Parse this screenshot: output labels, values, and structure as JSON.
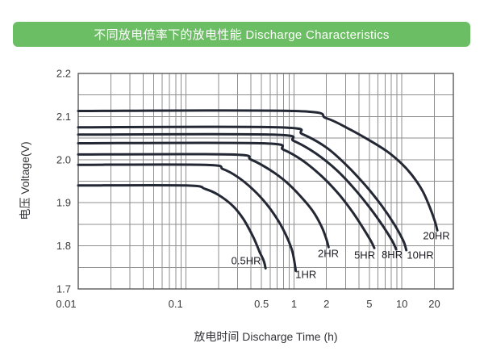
{
  "header": {
    "title": "不同放电倍率下的放电性能 Discharge Characteristics",
    "background_color": "#6cbe64",
    "text_color": "#ffffff"
  },
  "chart_data": {
    "type": "line",
    "title": "不同放电倍率下的放电性能 Discharge Characteristics",
    "xlabel": "放电时间  Discharge Time (h)",
    "ylabel": "电压  Voltage(V)",
    "x_scale": "log",
    "xlim": [
      0.01,
      30
    ],
    "ylim": [
      1.7,
      2.2
    ],
    "grid": true,
    "legend_position": "inline-labels",
    "curve_color": "#232834",
    "grid_color": "#8f8f8f",
    "border_color": "#5a5a5a",
    "tick_color": "#3a3a3e",
    "label_color": "#1d1d24",
    "x_ticks": [
      {
        "label": "0.01",
        "value": 0.01,
        "label_dx": -15
      },
      {
        "label": "0.1",
        "value": 0.1,
        "label_dx": -13
      },
      {
        "label": "0.5",
        "value": 0.5,
        "label_dx": 0
      },
      {
        "label": "1",
        "value": 1,
        "label_dx": 0
      },
      {
        "label": "2",
        "value": 2,
        "label_dx": 0
      },
      {
        "label": "5",
        "value": 5,
        "label_dx": 0
      },
      {
        "label": "10",
        "value": 10,
        "label_dx": 0
      },
      {
        "label": "20",
        "value": 20,
        "label_dx": 0
      }
    ],
    "y_ticks": [
      {
        "label": "2.2",
        "value": 2.2
      },
      {
        "label": "2.1",
        "value": 2.1
      },
      {
        "label": "2.0",
        "value": 2.0
      },
      {
        "label": "1.9",
        "value": 1.9
      },
      {
        "label": "1.8",
        "value": 1.8
      },
      {
        "label": "1.7",
        "value": 1.7
      }
    ],
    "y_minor_step": 0.05,
    "series": [
      {
        "name": "0.5HR",
        "label": "0.5HR",
        "label_anchor": [
          0.36,
          1.766
        ],
        "points": [
          [
            0.01,
            1.94
          ],
          [
            0.1,
            1.94
          ],
          [
            0.15,
            1.932
          ],
          [
            0.2,
            1.918
          ],
          [
            0.27,
            1.893
          ],
          [
            0.34,
            1.862
          ],
          [
            0.42,
            1.82
          ],
          [
            0.48,
            1.786
          ],
          [
            0.525,
            1.765
          ],
          [
            0.545,
            1.748
          ]
        ]
      },
      {
        "name": "1HR",
        "label": "1HR",
        "label_anchor": [
          1.29,
          1.734
        ],
        "points": [
          [
            0.01,
            1.988
          ],
          [
            0.15,
            1.988
          ],
          [
            0.22,
            1.978
          ],
          [
            0.3,
            1.96
          ],
          [
            0.42,
            1.93
          ],
          [
            0.56,
            1.896
          ],
          [
            0.72,
            1.857
          ],
          [
            0.86,
            1.82
          ],
          [
            0.97,
            1.785
          ],
          [
            1.04,
            1.742
          ]
        ]
      },
      {
        "name": "2HR",
        "label": "2HR",
        "label_anchor": [
          2.08,
          1.782
        ],
        "points": [
          [
            0.01,
            2.012
          ],
          [
            0.26,
            2.012
          ],
          [
            0.4,
            2.0
          ],
          [
            0.6,
            1.976
          ],
          [
            0.85,
            1.948
          ],
          [
            1.15,
            1.915
          ],
          [
            1.5,
            1.88
          ],
          [
            1.8,
            1.845
          ],
          [
            2.0,
            1.815
          ],
          [
            2.09,
            1.797
          ]
        ]
      },
      {
        "name": "5HR",
        "label": "5HR",
        "label_anchor": [
          4.52,
          1.779
        ],
        "points": [
          [
            0.01,
            2.038
          ],
          [
            0.5,
            2.038
          ],
          [
            0.8,
            2.023
          ],
          [
            1.2,
            1.998
          ],
          [
            1.8,
            1.962
          ],
          [
            2.6,
            1.92
          ],
          [
            3.5,
            1.878
          ],
          [
            4.4,
            1.84
          ],
          [
            5.2,
            1.81
          ],
          [
            5.55,
            1.795
          ]
        ]
      },
      {
        "name": "8HR",
        "label": "8HR",
        "label_anchor": [
          8.12,
          1.78
        ],
        "points": [
          [
            0.01,
            2.058
          ],
          [
            0.62,
            2.058
          ],
          [
            1.0,
            2.043
          ],
          [
            1.6,
            2.014
          ],
          [
            2.5,
            1.975
          ],
          [
            3.7,
            1.93
          ],
          [
            5.2,
            1.884
          ],
          [
            6.8,
            1.843
          ],
          [
            8.2,
            1.81
          ],
          [
            8.85,
            1.792
          ]
        ]
      },
      {
        "name": "10HR",
        "label": "10HR",
        "label_anchor": [
          14.8,
          1.779
        ],
        "points": [
          [
            0.01,
            2.075
          ],
          [
            0.72,
            2.075
          ],
          [
            1.2,
            2.059
          ],
          [
            2.0,
            2.028
          ],
          [
            3.1,
            1.986
          ],
          [
            4.6,
            1.94
          ],
          [
            6.5,
            1.893
          ],
          [
            8.5,
            1.85
          ],
          [
            10.3,
            1.812
          ],
          [
            11.0,
            1.79
          ]
        ]
      },
      {
        "name": "20HR",
        "label": "20HR",
        "label_anchor": [
          20.9,
          1.824
        ],
        "points": [
          [
            0.01,
            2.113
          ],
          [
            1.0,
            2.113
          ],
          [
            2.0,
            2.096
          ],
          [
            3.2,
            2.072
          ],
          [
            5.0,
            2.045
          ],
          [
            7.4,
            2.018
          ],
          [
            10.0,
            1.99
          ],
          [
            12.5,
            1.963
          ],
          [
            15.5,
            1.928
          ],
          [
            18.0,
            1.892
          ],
          [
            20.3,
            1.856
          ],
          [
            21.3,
            1.836
          ]
        ]
      }
    ]
  }
}
